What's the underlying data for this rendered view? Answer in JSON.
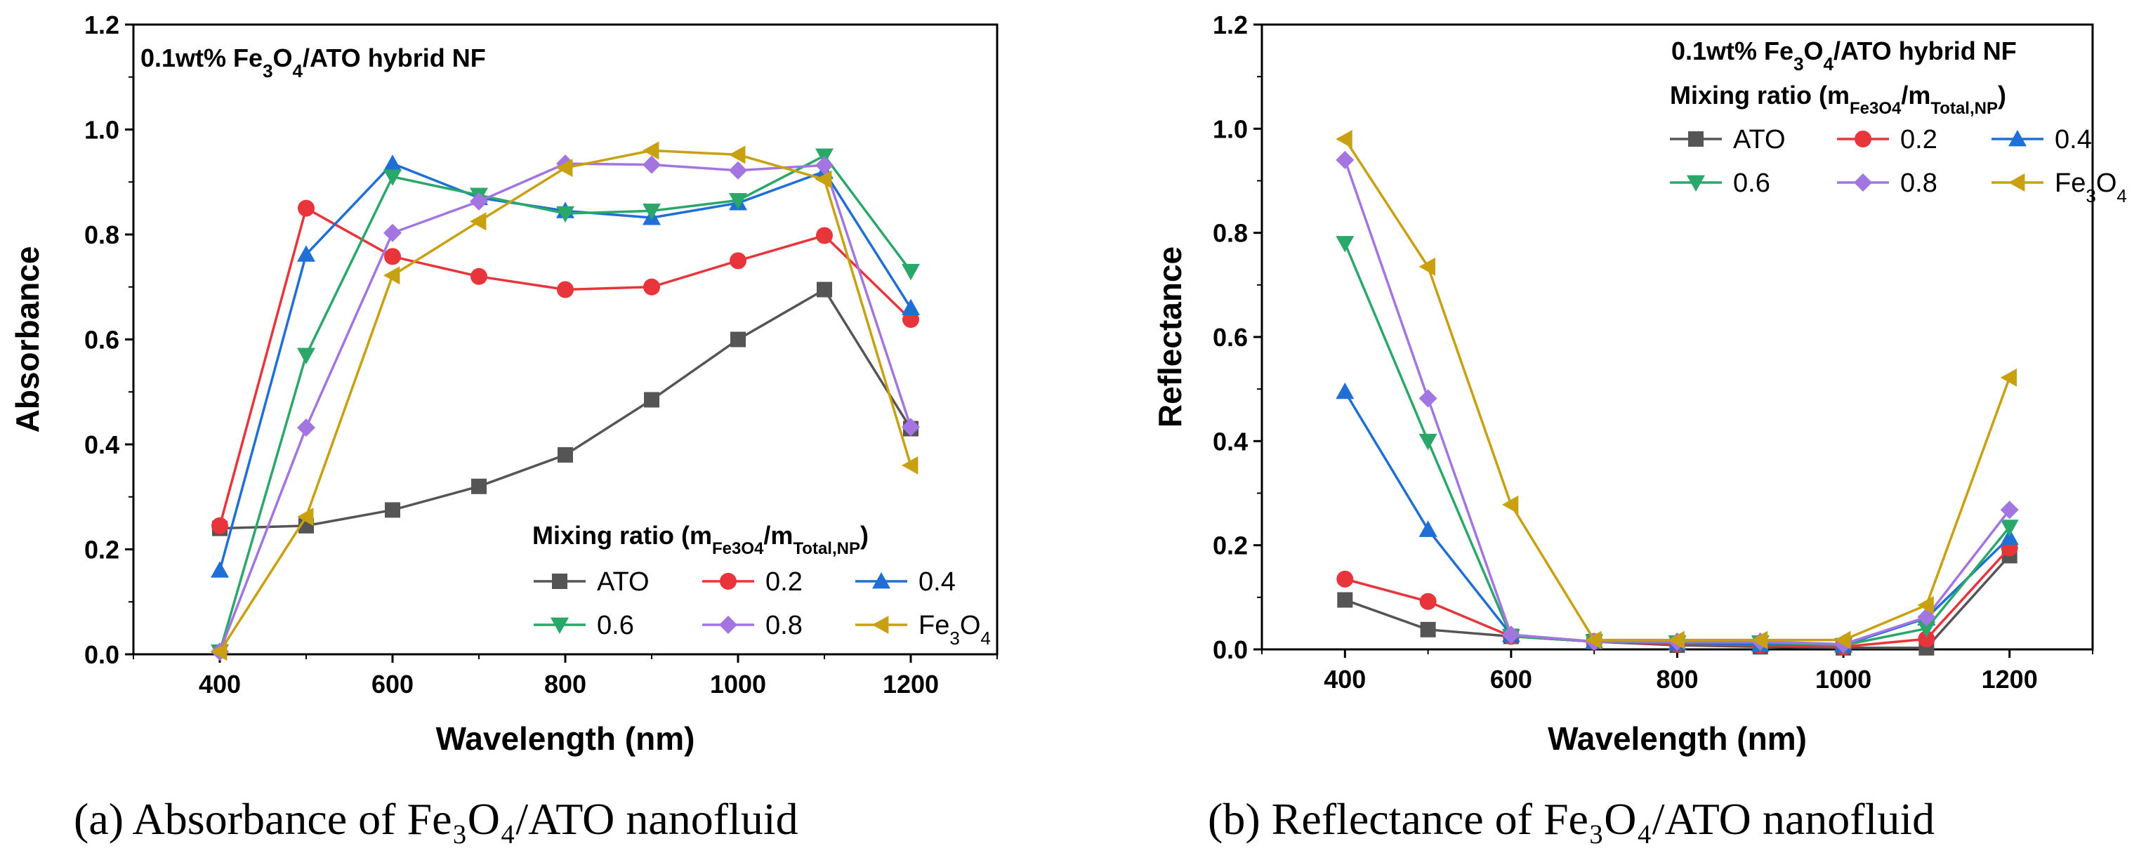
{
  "chart_data": [
    {
      "id": "a",
      "type": "line",
      "caption": "(a) Absorbance of Fe₃O₄/ATO nanofluid",
      "title": "",
      "annotation": "0.1wt% Fe3O4/ATO hybrid NF",
      "legend_title": "Mixing ratio (mFe3O4/mTotal,NP)",
      "legend_position": "bottom-right",
      "xlabel": "Wavelength (nm)",
      "ylabel": "Absorbance",
      "xlim": [
        300,
        1300
      ],
      "ylim": [
        0,
        1.2
      ],
      "xticks": [
        400,
        600,
        800,
        1000,
        1200
      ],
      "yticks": [
        "0.0",
        "0.2",
        "0.4",
        "0.6",
        "0.8",
        "1.0",
        "1.2"
      ],
      "x": [
        400,
        500,
        600,
        700,
        800,
        900,
        1000,
        1100,
        1200
      ],
      "series": [
        {
          "name": "ATO",
          "color": "#555555",
          "marker": "square",
          "values": [
            0.24,
            0.245,
            0.275,
            0.32,
            0.38,
            0.485,
            0.6,
            0.695,
            0.43
          ]
        },
        {
          "name": "0.2",
          "color": "#e8343b",
          "marker": "circle",
          "values": [
            0.245,
            0.85,
            0.758,
            0.72,
            0.695,
            0.7,
            0.75,
            0.798,
            0.638
          ]
        },
        {
          "name": "0.4",
          "color": "#1f6fd6",
          "marker": "triangle-up",
          "values": [
            0.16,
            0.762,
            0.935,
            0.87,
            0.845,
            0.832,
            0.86,
            0.92,
            0.66
          ]
        },
        {
          "name": "0.6",
          "color": "#2aa86a",
          "marker": "triangle-down",
          "values": [
            0.005,
            0.57,
            0.91,
            0.875,
            0.84,
            0.845,
            0.865,
            0.95,
            0.73
          ]
        },
        {
          "name": "0.8",
          "color": "#a375e0",
          "marker": "diamond",
          "values": [
            0.005,
            0.432,
            0.803,
            0.863,
            0.935,
            0.933,
            0.922,
            0.932,
            0.433
          ]
        },
        {
          "name": "Fe3O4",
          "color": "#c9a010",
          "marker": "triangle-left",
          "values": [
            0.005,
            0.262,
            0.722,
            0.825,
            0.927,
            0.96,
            0.952,
            0.905,
            0.36
          ]
        }
      ]
    },
    {
      "id": "b",
      "type": "line",
      "caption": "(b) Reflectance of Fe₃O₄/ATO nanofluid",
      "title": "",
      "annotation": "0.1wt% Fe3O4/ATO hybrid NF",
      "legend_title": "Mixing ratio (mFe3O4/mTotal,NP)",
      "legend_position": "top-right",
      "xlabel": "Wavelength (nm)",
      "ylabel": "Reflectance",
      "xlim": [
        300,
        1300
      ],
      "ylim": [
        0,
        1.2
      ],
      "xticks": [
        400,
        600,
        800,
        1000,
        1200
      ],
      "yticks": [
        "0.0",
        "0.2",
        "0.4",
        "0.6",
        "0.8",
        "1.0",
        "1.2"
      ],
      "x": [
        400,
        500,
        600,
        700,
        800,
        900,
        1000,
        1100,
        1200
      ],
      "series": [
        {
          "name": "ATO",
          "color": "#555555",
          "marker": "square",
          "values": [
            0.095,
            0.038,
            0.025,
            0.015,
            0.008,
            0.005,
            0.003,
            0.003,
            0.18
          ]
        },
        {
          "name": "0.2",
          "color": "#e8343b",
          "marker": "circle",
          "values": [
            0.135,
            0.092,
            0.025,
            0.015,
            0.01,
            0.008,
            0.005,
            0.02,
            0.195
          ]
        },
        {
          "name": "0.4",
          "color": "#1f6fd6",
          "marker": "triangle-up",
          "values": [
            0.495,
            0.23,
            0.028,
            0.015,
            0.012,
            0.01,
            0.008,
            0.06,
            0.215
          ]
        },
        {
          "name": "0.6",
          "color": "#2aa86a",
          "marker": "triangle-down",
          "values": [
            0.78,
            0.4,
            0.025,
            0.015,
            0.013,
            0.013,
            0.008,
            0.04,
            0.235
          ]
        },
        {
          "name": "0.8",
          "color": "#a375e0",
          "marker": "diamond",
          "values": [
            0.94,
            0.482,
            0.028,
            0.015,
            0.015,
            0.015,
            0.01,
            0.062,
            0.268
          ]
        },
        {
          "name": "Fe3O4",
          "color": "#c9a010",
          "marker": "triangle-left",
          "values": [
            0.98,
            0.735,
            0.278,
            0.018,
            0.018,
            0.018,
            0.018,
            0.085,
            0.522
          ]
        }
      ]
    }
  ]
}
